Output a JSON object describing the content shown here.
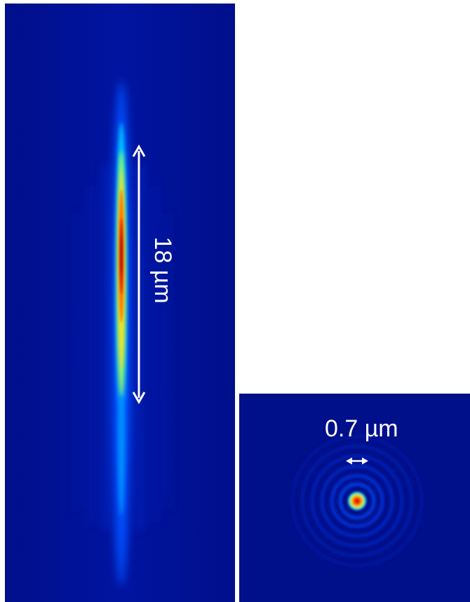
{
  "figure": {
    "left_panel": {
      "scale_label": "18 µm"
    },
    "right_panel": {
      "scale_label": "0.7 µm"
    },
    "colors": {
      "background": "#00108e",
      "colormap": "jet",
      "annotation": "#ffffff"
    }
  }
}
